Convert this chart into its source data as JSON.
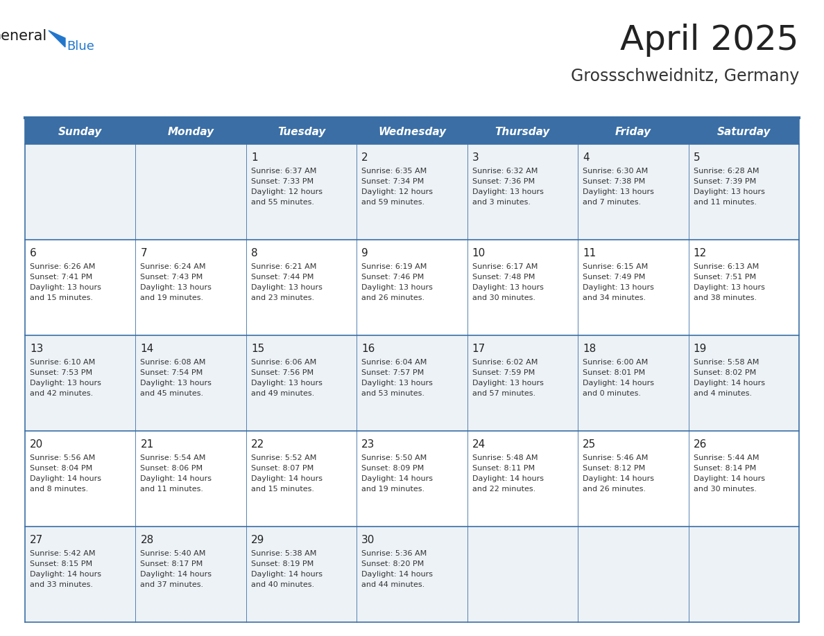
{
  "title": "April 2025",
  "subtitle": "Grossschweidnitz, Germany",
  "header_bg_color": "#3a6ea5",
  "header_text_color": "#ffffff",
  "day_names": [
    "Sunday",
    "Monday",
    "Tuesday",
    "Wednesday",
    "Thursday",
    "Friday",
    "Saturday"
  ],
  "row_bg_odd": "#edf2f7",
  "row_bg_even": "#ffffff",
  "cell_border_color": "#3a6ea5",
  "date_text_color": "#222222",
  "info_text_color": "#333333",
  "title_color": "#222222",
  "subtitle_color": "#333333",
  "logo_general_color": "#1a1a1a",
  "logo_blue_color": "#2277cc",
  "weeks": [
    [
      {
        "date": "",
        "sunrise": "",
        "sunset": "",
        "daylight_h": "",
        "daylight_m": ""
      },
      {
        "date": "",
        "sunrise": "",
        "sunset": "",
        "daylight_h": "",
        "daylight_m": ""
      },
      {
        "date": "1",
        "sunrise": "6:37 AM",
        "sunset": "7:33 PM",
        "daylight_h": "12 hours",
        "daylight_m": "55 minutes."
      },
      {
        "date": "2",
        "sunrise": "6:35 AM",
        "sunset": "7:34 PM",
        "daylight_h": "12 hours",
        "daylight_m": "59 minutes."
      },
      {
        "date": "3",
        "sunrise": "6:32 AM",
        "sunset": "7:36 PM",
        "daylight_h": "13 hours",
        "daylight_m": "3 minutes."
      },
      {
        "date": "4",
        "sunrise": "6:30 AM",
        "sunset": "7:38 PM",
        "daylight_h": "13 hours",
        "daylight_m": "7 minutes."
      },
      {
        "date": "5",
        "sunrise": "6:28 AM",
        "sunset": "7:39 PM",
        "daylight_h": "13 hours",
        "daylight_m": "11 minutes."
      }
    ],
    [
      {
        "date": "6",
        "sunrise": "6:26 AM",
        "sunset": "7:41 PM",
        "daylight_h": "13 hours",
        "daylight_m": "15 minutes."
      },
      {
        "date": "7",
        "sunrise": "6:24 AM",
        "sunset": "7:43 PM",
        "daylight_h": "13 hours",
        "daylight_m": "19 minutes."
      },
      {
        "date": "8",
        "sunrise": "6:21 AM",
        "sunset": "7:44 PM",
        "daylight_h": "13 hours",
        "daylight_m": "23 minutes."
      },
      {
        "date": "9",
        "sunrise": "6:19 AM",
        "sunset": "7:46 PM",
        "daylight_h": "13 hours",
        "daylight_m": "26 minutes."
      },
      {
        "date": "10",
        "sunrise": "6:17 AM",
        "sunset": "7:48 PM",
        "daylight_h": "13 hours",
        "daylight_m": "30 minutes."
      },
      {
        "date": "11",
        "sunrise": "6:15 AM",
        "sunset": "7:49 PM",
        "daylight_h": "13 hours",
        "daylight_m": "34 minutes."
      },
      {
        "date": "12",
        "sunrise": "6:13 AM",
        "sunset": "7:51 PM",
        "daylight_h": "13 hours",
        "daylight_m": "38 minutes."
      }
    ],
    [
      {
        "date": "13",
        "sunrise": "6:10 AM",
        "sunset": "7:53 PM",
        "daylight_h": "13 hours",
        "daylight_m": "42 minutes."
      },
      {
        "date": "14",
        "sunrise": "6:08 AM",
        "sunset": "7:54 PM",
        "daylight_h": "13 hours",
        "daylight_m": "45 minutes."
      },
      {
        "date": "15",
        "sunrise": "6:06 AM",
        "sunset": "7:56 PM",
        "daylight_h": "13 hours",
        "daylight_m": "49 minutes."
      },
      {
        "date": "16",
        "sunrise": "6:04 AM",
        "sunset": "7:57 PM",
        "daylight_h": "13 hours",
        "daylight_m": "53 minutes."
      },
      {
        "date": "17",
        "sunrise": "6:02 AM",
        "sunset": "7:59 PM",
        "daylight_h": "13 hours",
        "daylight_m": "57 minutes."
      },
      {
        "date": "18",
        "sunrise": "6:00 AM",
        "sunset": "8:01 PM",
        "daylight_h": "14 hours",
        "daylight_m": "0 minutes."
      },
      {
        "date": "19",
        "sunrise": "5:58 AM",
        "sunset": "8:02 PM",
        "daylight_h": "14 hours",
        "daylight_m": "4 minutes."
      }
    ],
    [
      {
        "date": "20",
        "sunrise": "5:56 AM",
        "sunset": "8:04 PM",
        "daylight_h": "14 hours",
        "daylight_m": "8 minutes."
      },
      {
        "date": "21",
        "sunrise": "5:54 AM",
        "sunset": "8:06 PM",
        "daylight_h": "14 hours",
        "daylight_m": "11 minutes."
      },
      {
        "date": "22",
        "sunrise": "5:52 AM",
        "sunset": "8:07 PM",
        "daylight_h": "14 hours",
        "daylight_m": "15 minutes."
      },
      {
        "date": "23",
        "sunrise": "5:50 AM",
        "sunset": "8:09 PM",
        "daylight_h": "14 hours",
        "daylight_m": "19 minutes."
      },
      {
        "date": "24",
        "sunrise": "5:48 AM",
        "sunset": "8:11 PM",
        "daylight_h": "14 hours",
        "daylight_m": "22 minutes."
      },
      {
        "date": "25",
        "sunrise": "5:46 AM",
        "sunset": "8:12 PM",
        "daylight_h": "14 hours",
        "daylight_m": "26 minutes."
      },
      {
        "date": "26",
        "sunrise": "5:44 AM",
        "sunset": "8:14 PM",
        "daylight_h": "14 hours",
        "daylight_m": "30 minutes."
      }
    ],
    [
      {
        "date": "27",
        "sunrise": "5:42 AM",
        "sunset": "8:15 PM",
        "daylight_h": "14 hours",
        "daylight_m": "33 minutes."
      },
      {
        "date": "28",
        "sunrise": "5:40 AM",
        "sunset": "8:17 PM",
        "daylight_h": "14 hours",
        "daylight_m": "37 minutes."
      },
      {
        "date": "29",
        "sunrise": "5:38 AM",
        "sunset": "8:19 PM",
        "daylight_h": "14 hours",
        "daylight_m": "40 minutes."
      },
      {
        "date": "30",
        "sunrise": "5:36 AM",
        "sunset": "8:20 PM",
        "daylight_h": "14 hours",
        "daylight_m": "44 minutes."
      },
      {
        "date": "",
        "sunrise": "",
        "sunset": "",
        "daylight_h": "",
        "daylight_m": ""
      },
      {
        "date": "",
        "sunrise": "",
        "sunset": "",
        "daylight_h": "",
        "daylight_m": ""
      },
      {
        "date": "",
        "sunrise": "",
        "sunset": "",
        "daylight_h": "",
        "daylight_m": ""
      }
    ]
  ]
}
